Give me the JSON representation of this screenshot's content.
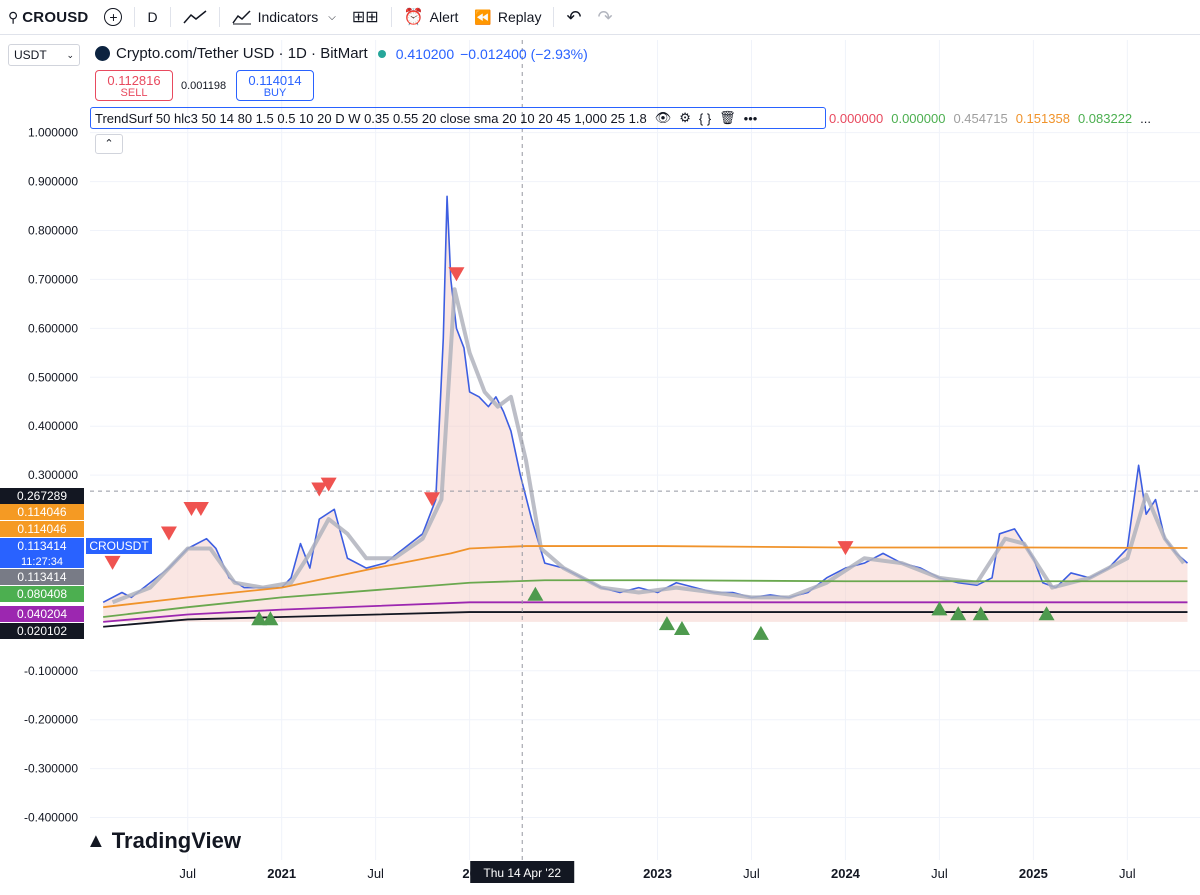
{
  "toolbar": {
    "symbol": "CROUSD",
    "interval": "D",
    "indicators_label": "Indicators",
    "alert_label": "Alert",
    "replay_label": "Replay"
  },
  "quote_currency": "USDT",
  "legend": {
    "title": "Crypto.com/Tether USD · 1D · BitMart",
    "last_price": "0.410200",
    "change": "−0.012400 (−2.93%)"
  },
  "trade": {
    "sell_price": "0.112816",
    "sell_label": "SELL",
    "spread": "0.001198",
    "buy_price": "0.114014",
    "buy_label": "BUY"
  },
  "indicator": {
    "label": "TrendSurf 50 hlc3 50 14 80 1.5 0.5 10 20 D W 0.35 0.55 20 close sma 20 10 20 45 1,000 25 1.8",
    "values": [
      {
        "text": "0.000000",
        "color": "#e84a5f"
      },
      {
        "text": "0.000000",
        "color": "#4caf50"
      },
      {
        "text": "0.454715",
        "color": "#9e9e9e"
      },
      {
        "text": "0.151358",
        "color": "#f0932b"
      },
      {
        "text": "0.083222",
        "color": "#4caf50"
      },
      {
        "text": "...",
        "color": "#131722"
      }
    ]
  },
  "crosshair_label": "Thu 14 Apr '22",
  "price_labels": [
    {
      "text": "0.267289",
      "bg": "#131722",
      "value": 0.267289
    },
    {
      "text": "0.114046",
      "bg": "#f59a23",
      "value": 0.114046
    },
    {
      "text": "0.114046",
      "bg": "#f59a23",
      "value": 0.114046
    },
    {
      "text": "0.113414",
      "bg": "#2962ff",
      "value": 0.113414
    },
    {
      "text": "0.113414",
      "bg": "#787b86",
      "value": 0.113414
    },
    {
      "text": "0.080408",
      "bg": "#4caf50",
      "value": 0.080408
    },
    {
      "text": "0.040204",
      "bg": "#9c27b0",
      "value": 0.040204
    },
    {
      "text": "0.020102",
      "bg": "#131722",
      "value": 0.020102
    }
  ],
  "last_label": {
    "symbol": "CROUSDT",
    "countdown": "11:27:34"
  },
  "brand": "TradingView",
  "chart_data": {
    "type": "line",
    "title": "Crypto.com/Tether USD · 1D · BitMart",
    "y_ticks": [
      "1.000000",
      "0.900000",
      "0.800000",
      "0.700000",
      "0.600000",
      "0.500000",
      "0.400000",
      "0.300000",
      "-0.100000",
      "-0.200000",
      "-0.300000",
      "-0.400000"
    ],
    "ylim": [
      -0.45,
      1.03
    ],
    "x_tick_labels": [
      "Jul",
      "2021",
      "Jul",
      "20",
      "2023",
      "Jul",
      "2024",
      "Jul",
      "2025",
      "Jul"
    ],
    "x_ticks_t": [
      2020.5,
      2021.0,
      2021.5,
      2022.0,
      2023.0,
      2023.5,
      2024.0,
      2024.5,
      2025.0,
      2025.5
    ],
    "xlim": [
      2019.98,
      2025.86
    ],
    "series": [
      {
        "color": "#3d5ee1",
        "points": [
          [
            2020.05,
            0.04
          ],
          [
            2020.15,
            0.06
          ],
          [
            2020.2,
            0.05
          ],
          [
            2020.3,
            0.08
          ],
          [
            2020.4,
            0.11
          ],
          [
            2020.5,
            0.15
          ],
          [
            2020.6,
            0.17
          ],
          [
            2020.65,
            0.15
          ],
          [
            2020.72,
            0.09
          ],
          [
            2020.8,
            0.07
          ],
          [
            2020.9,
            0.07
          ],
          [
            2021.0,
            0.07
          ],
          [
            2021.05,
            0.09
          ],
          [
            2021.1,
            0.16
          ],
          [
            2021.15,
            0.11
          ],
          [
            2021.2,
            0.21
          ],
          [
            2021.28,
            0.23
          ],
          [
            2021.35,
            0.13
          ],
          [
            2021.45,
            0.11
          ],
          [
            2021.55,
            0.12
          ],
          [
            2021.65,
            0.15
          ],
          [
            2021.75,
            0.18
          ],
          [
            2021.82,
            0.25
          ],
          [
            2021.86,
            0.58
          ],
          [
            2021.88,
            0.87
          ],
          [
            2021.9,
            0.7
          ],
          [
            2021.93,
            0.6
          ],
          [
            2021.97,
            0.56
          ],
          [
            2022.0,
            0.47
          ],
          [
            2022.05,
            0.46
          ],
          [
            2022.1,
            0.44
          ],
          [
            2022.14,
            0.46
          ],
          [
            2022.18,
            0.43
          ],
          [
            2022.22,
            0.39
          ],
          [
            2022.27,
            0.3
          ],
          [
            2022.33,
            0.21
          ],
          [
            2022.4,
            0.12
          ],
          [
            2022.5,
            0.11
          ],
          [
            2022.6,
            0.09
          ],
          [
            2022.7,
            0.07
          ],
          [
            2022.8,
            0.06
          ],
          [
            2022.9,
            0.07
          ],
          [
            2023.0,
            0.06
          ],
          [
            2023.1,
            0.08
          ],
          [
            2023.2,
            0.07
          ],
          [
            2023.3,
            0.06
          ],
          [
            2023.4,
            0.06
          ],
          [
            2023.5,
            0.05
          ],
          [
            2023.6,
            0.055
          ],
          [
            2023.7,
            0.05
          ],
          [
            2023.8,
            0.06
          ],
          [
            2023.9,
            0.09
          ],
          [
            2024.0,
            0.11
          ],
          [
            2024.1,
            0.12
          ],
          [
            2024.2,
            0.14
          ],
          [
            2024.3,
            0.12
          ],
          [
            2024.4,
            0.11
          ],
          [
            2024.5,
            0.09
          ],
          [
            2024.6,
            0.08
          ],
          [
            2024.7,
            0.075
          ],
          [
            2024.78,
            0.09
          ],
          [
            2024.82,
            0.18
          ],
          [
            2024.9,
            0.19
          ],
          [
            2025.0,
            0.13
          ],
          [
            2025.05,
            0.08
          ],
          [
            2025.12,
            0.07
          ],
          [
            2025.2,
            0.1
          ],
          [
            2025.3,
            0.09
          ],
          [
            2025.4,
            0.11
          ],
          [
            2025.5,
            0.15
          ],
          [
            2025.56,
            0.32
          ],
          [
            2025.6,
            0.22
          ],
          [
            2025.65,
            0.25
          ],
          [
            2025.7,
            0.17
          ],
          [
            2025.76,
            0.14
          ],
          [
            2025.82,
            0.12
          ]
        ]
      },
      {
        "color": "#b0b3bd",
        "points": [
          [
            2020.1,
            0.04
          ],
          [
            2020.3,
            0.07
          ],
          [
            2020.5,
            0.15
          ],
          [
            2020.62,
            0.15
          ],
          [
            2020.75,
            0.08
          ],
          [
            2020.9,
            0.07
          ],
          [
            2021.05,
            0.08
          ],
          [
            2021.15,
            0.14
          ],
          [
            2021.25,
            0.21
          ],
          [
            2021.35,
            0.18
          ],
          [
            2021.45,
            0.13
          ],
          [
            2021.6,
            0.13
          ],
          [
            2021.75,
            0.17
          ],
          [
            2021.85,
            0.25
          ],
          [
            2021.92,
            0.68
          ],
          [
            2022.0,
            0.55
          ],
          [
            2022.08,
            0.47
          ],
          [
            2022.15,
            0.44
          ],
          [
            2022.22,
            0.46
          ],
          [
            2022.3,
            0.33
          ],
          [
            2022.38,
            0.15
          ],
          [
            2022.5,
            0.11
          ],
          [
            2022.7,
            0.07
          ],
          [
            2022.9,
            0.06
          ],
          [
            2023.1,
            0.07
          ],
          [
            2023.3,
            0.06
          ],
          [
            2023.5,
            0.05
          ],
          [
            2023.7,
            0.05
          ],
          [
            2023.9,
            0.08
          ],
          [
            2024.1,
            0.13
          ],
          [
            2024.3,
            0.12
          ],
          [
            2024.5,
            0.09
          ],
          [
            2024.7,
            0.08
          ],
          [
            2024.85,
            0.17
          ],
          [
            2024.95,
            0.16
          ],
          [
            2025.1,
            0.07
          ],
          [
            2025.3,
            0.09
          ],
          [
            2025.5,
            0.13
          ],
          [
            2025.6,
            0.26
          ],
          [
            2025.7,
            0.17
          ],
          [
            2025.8,
            0.12
          ]
        ]
      },
      {
        "color": "#f0932b",
        "points": [
          [
            2020.05,
            0.03
          ],
          [
            2020.5,
            0.05
          ],
          [
            2021.0,
            0.07
          ],
          [
            2021.5,
            0.11
          ],
          [
            2021.9,
            0.14
          ],
          [
            2022.0,
            0.15
          ],
          [
            2022.3,
            0.155
          ],
          [
            2023.0,
            0.155
          ],
          [
            2024.0,
            0.152
          ],
          [
            2025.0,
            0.152
          ],
          [
            2025.82,
            0.151
          ]
        ]
      },
      {
        "color": "#6aa84f",
        "points": [
          [
            2020.05,
            0.01
          ],
          [
            2020.5,
            0.03
          ],
          [
            2021.0,
            0.05
          ],
          [
            2021.5,
            0.065
          ],
          [
            2022.0,
            0.08
          ],
          [
            2022.4,
            0.085
          ],
          [
            2023.0,
            0.085
          ],
          [
            2024.0,
            0.083
          ],
          [
            2025.0,
            0.083
          ],
          [
            2025.82,
            0.083
          ]
        ]
      },
      {
        "color": "#9c27b0",
        "points": [
          [
            2020.05,
            0.0
          ],
          [
            2020.5,
            0.015
          ],
          [
            2021.0,
            0.025
          ],
          [
            2022.0,
            0.04
          ],
          [
            2023.0,
            0.04
          ],
          [
            2025.82,
            0.04
          ]
        ]
      },
      {
        "color": "#131722",
        "points": [
          [
            2020.05,
            -0.01
          ],
          [
            2020.5,
            0.005
          ],
          [
            2021.0,
            0.01
          ],
          [
            2022.0,
            0.02
          ],
          [
            2023.0,
            0.02
          ],
          [
            2025.82,
            0.02
          ]
        ]
      }
    ],
    "sell_markers": [
      [
        2020.1,
        0.09
      ],
      [
        2020.4,
        0.15
      ],
      [
        2020.52,
        0.2
      ],
      [
        2020.57,
        0.2
      ],
      [
        2021.2,
        0.24
      ],
      [
        2021.25,
        0.25
      ],
      [
        2021.8,
        0.22
      ],
      [
        2021.93,
        0.68
      ],
      [
        2024.0,
        0.12
      ]
    ],
    "buy_markers": [
      [
        2020.88,
        0.03
      ],
      [
        2020.94,
        0.03
      ],
      [
        2022.35,
        0.08
      ],
      [
        2023.05,
        0.02
      ],
      [
        2023.13,
        0.01
      ],
      [
        2023.55,
        0.0
      ],
      [
        2024.5,
        0.05
      ],
      [
        2024.6,
        0.04
      ],
      [
        2024.72,
        0.04
      ],
      [
        2025.07,
        0.04
      ]
    ]
  }
}
